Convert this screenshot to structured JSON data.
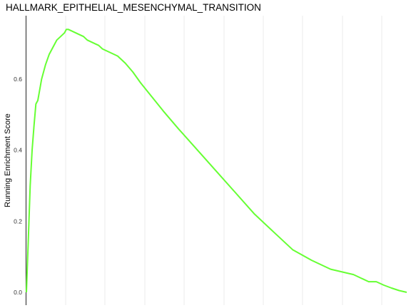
{
  "chart_data": {
    "type": "line",
    "title": "HALLMARK_EPITHELIAL_MESENCHYMAL_TRANSITION",
    "ylabel": "Running Enrichment Score",
    "xlabel": "",
    "ylim": [
      0.0,
      0.77
    ],
    "xlim": [
      0,
      100
    ],
    "y_ticks": [
      "0.0",
      "0.2",
      "0.4",
      "0.6"
    ],
    "y_tick_values": [
      0.0,
      0.2,
      0.4,
      0.6
    ],
    "grid": true,
    "line_color": "#66FF33",
    "series": [
      {
        "x": [
          0,
          0.5,
          1,
          1.5,
          2,
          2.5,
          3,
          4,
          5,
          6,
          7,
          8,
          9,
          10,
          10.5,
          11,
          12,
          13,
          14,
          15,
          16,
          17,
          18,
          19,
          20,
          22,
          24,
          26,
          28,
          30,
          33,
          36,
          40,
          45,
          50,
          55,
          60,
          65,
          70,
          75,
          80,
          82,
          84,
          86,
          88,
          90,
          92,
          94,
          96,
          98,
          100
        ],
        "y": [
          0.0,
          0.15,
          0.3,
          0.4,
          0.47,
          0.53,
          0.54,
          0.6,
          0.64,
          0.67,
          0.69,
          0.71,
          0.72,
          0.73,
          0.74,
          0.74,
          0.735,
          0.73,
          0.725,
          0.72,
          0.71,
          0.705,
          0.7,
          0.695,
          0.685,
          0.675,
          0.665,
          0.645,
          0.62,
          0.59,
          0.55,
          0.51,
          0.46,
          0.4,
          0.34,
          0.28,
          0.22,
          0.17,
          0.12,
          0.09,
          0.065,
          0.06,
          0.055,
          0.05,
          0.04,
          0.03,
          0.03,
          0.02,
          0.012,
          0.005,
          0.0
        ]
      }
    ]
  }
}
